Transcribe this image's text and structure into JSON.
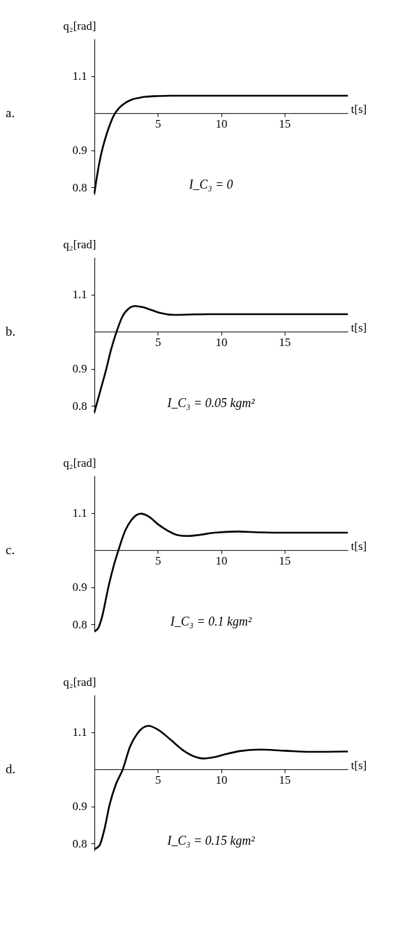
{
  "chart_data": [
    {
      "type": "line",
      "xlabel": "t[s]",
      "ylabel": "q₂[rad]",
      "annotations": [
        "a.",
        "I_C₃ = 0"
      ],
      "xlim": [
        0,
        20
      ],
      "ylim": [
        0.78,
        1.2
      ],
      "xticks": [
        5,
        10,
        15
      ],
      "yticks": [
        0.8,
        0.9,
        1.1
      ],
      "x": [
        0,
        0.2,
        0.5,
        0.8,
        1.2,
        1.6,
        2.0,
        2.5,
        3,
        3.5,
        4,
        5,
        6,
        20
      ],
      "series": [
        {
          "color": "#000000",
          "values": [
            0.784,
            0.83,
            0.885,
            0.925,
            0.967,
            0.998,
            1.016,
            1.029,
            1.037,
            1.041,
            1.044,
            1.046,
            1.047,
            1.047
          ]
        }
      ]
    },
    {
      "type": "line",
      "xlabel": "t[s]",
      "ylabel": "q₂[rad]",
      "annotations": [
        "b.",
        "I_C₃ = 0.05 kgm²"
      ],
      "xlim": [
        0,
        20
      ],
      "ylim": [
        0.78,
        1.2
      ],
      "xticks": [
        5,
        10,
        15
      ],
      "yticks": [
        0.8,
        0.9,
        1.1
      ],
      "x": [
        0,
        0.5,
        0.94,
        1.3,
        1.75,
        2.2,
        2.7,
        3.2,
        3.8,
        4.5,
        5.2,
        6.3,
        7.5,
        9,
        20
      ],
      "series": [
        {
          "color": "#000000",
          "values": [
            0.783,
            0.845,
            0.9,
            0.95,
            1.0,
            1.04,
            1.062,
            1.069,
            1.066,
            1.058,
            1.05,
            1.045,
            1.046,
            1.047,
            1.047
          ]
        }
      ]
    },
    {
      "type": "line",
      "xlabel": "t[s]",
      "ylabel": "q₂[rad]",
      "annotations": [
        "c.",
        "I_C₃ = 0.1 kgm²"
      ],
      "xlim": [
        0,
        20
      ],
      "ylim": [
        0.78,
        1.2
      ],
      "xticks": [
        5,
        10,
        15
      ],
      "yticks": [
        0.8,
        0.9,
        1.1
      ],
      "x": [
        0,
        0.3,
        0.6,
        1.1,
        1.5,
        1.9,
        2.4,
        2.9,
        3.65,
        4.3,
        5,
        5.8,
        6.5,
        7.3,
        8.3,
        9.5,
        11.3,
        13,
        15,
        20
      ],
      "series": [
        {
          "color": "#000000",
          "values": [
            0.781,
            0.79,
            0.82,
            0.9,
            0.955,
            1.0,
            1.05,
            1.08,
            1.098,
            1.09,
            1.07,
            1.052,
            1.041,
            1.038,
            1.041,
            1.047,
            1.05,
            1.048,
            1.047,
            1.047
          ]
        }
      ]
    },
    {
      "type": "line",
      "xlabel": "t[s]",
      "ylabel": "q₂[rad]",
      "annotations": [
        "d.",
        "I_C₃ = 0.15 kgm²"
      ],
      "xlim": [
        0,
        20
      ],
      "ylim": [
        0.78,
        1.2
      ],
      "xticks": [
        5,
        10,
        15
      ],
      "yticks": [
        0.8,
        0.9,
        1.1
      ],
      "x": [
        0,
        0.4,
        0.8,
        1.2,
        1.7,
        2.24,
        2.8,
        3.4,
        4.27,
        5,
        6,
        7,
        8,
        8.6,
        9.5,
        10.5,
        11.5,
        13.1,
        15,
        17,
        20
      ],
      "series": [
        {
          "color": "#000000",
          "values": [
            0.785,
            0.795,
            0.84,
            0.905,
            0.96,
            1.0,
            1.06,
            1.097,
            1.117,
            1.107,
            1.08,
            1.051,
            1.033,
            1.029,
            1.033,
            1.042,
            1.049,
            1.053,
            1.05,
            1.047,
            1.048
          ]
        }
      ]
    }
  ]
}
